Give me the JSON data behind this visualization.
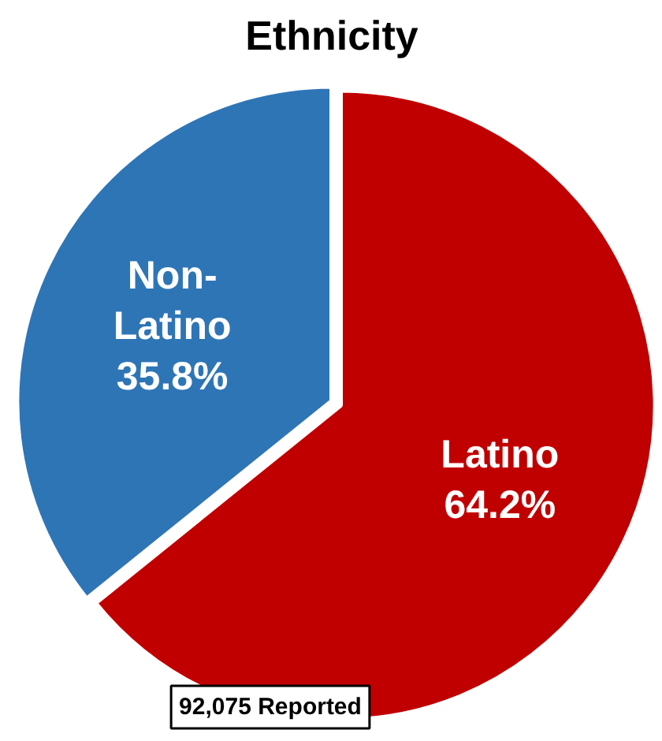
{
  "chart_data": {
    "type": "pie",
    "title": "Ethnicity",
    "categories": [
      "Latino",
      "Non-Latino"
    ],
    "values": [
      64.2,
      35.8
    ],
    "colors": [
      "#c00000",
      "#2e75b6"
    ],
    "value_labels": [
      "64.2%",
      "35.8%"
    ],
    "annotations": [
      "92,075 Reported"
    ]
  }
}
